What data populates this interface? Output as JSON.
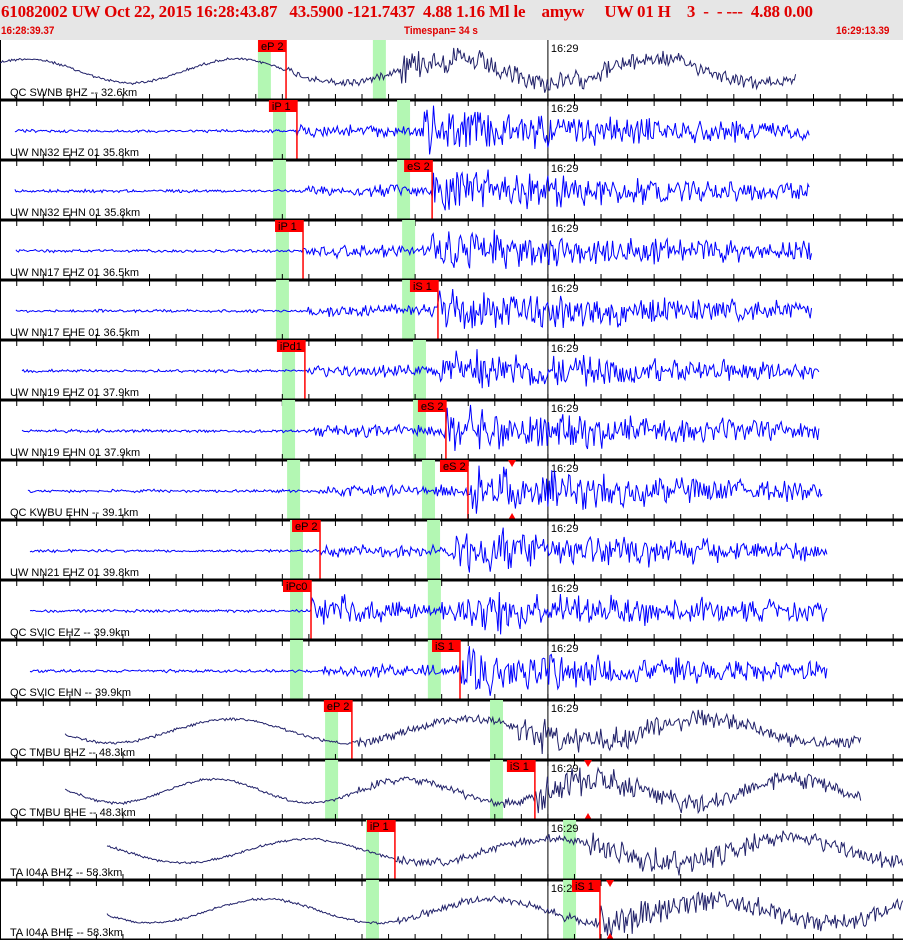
{
  "header": {
    "title": "61082002 UW Oct 22, 2015 16:28:43.87   43.5900 -121.7437  4.88 1.16 Ml le    amyw     UW 01 H    3  -  - ---  4.88 0.00",
    "start_time": "16:28:39.37",
    "timespan": "Timespan=  34 s",
    "end_time": "16:29:13.39"
  },
  "time_axis": {
    "span_seconds": 34,
    "minute_mark_label": "16:29",
    "minute_mark_offset_s": 20.63,
    "tick_interval_s": 1
  },
  "colors": {
    "pick": "#ff0000",
    "theoretical_window": "#b3f7b3",
    "broadband_trace": "#22226a",
    "short_period_trace": "#0000ff",
    "header_text": "#e00000"
  },
  "panels": [
    {
      "label": "QC SWNB BHZ -- 32.6km",
      "type": "BH",
      "pick": "eP 2",
      "pick_s": 10.77,
      "p_window_s": 9.71,
      "s_window_s": 14.04,
      "trace_s": [
        0,
        30.0
      ]
    },
    {
      "label": "UW NN32 EHZ 01 35.8km",
      "type": "EH",
      "pick": "iP 1",
      "pick_s": 11.18,
      "p_window_s": 10.28,
      "s_window_s": 14.95,
      "trace_s": [
        0.56,
        30.5
      ]
    },
    {
      "label": "UW NN32 EHN 01 35.8km",
      "type": "EH",
      "pick": "eS 2",
      "pick_s": 16.27,
      "p_window_s": 10.28,
      "s_window_s": 14.95,
      "trace_s": [
        0.56,
        30.5
      ]
    },
    {
      "label": "UW NN17 EHZ 01 36.5km",
      "type": "EH",
      "pick": "iP 1",
      "pick_s": 11.41,
      "p_window_s": 10.39,
      "s_window_s": 15.14,
      "trace_s": [
        0.6,
        30.6
      ]
    },
    {
      "label": "UW NN17 EHE 01 36.5km",
      "type": "EH",
      "pick": "iS 1",
      "pick_s": 16.49,
      "p_window_s": 10.39,
      "s_window_s": 15.14,
      "trace_s": [
        0.6,
        30.6
      ]
    },
    {
      "label": "UW NN19 EHZ 01 37.9km",
      "type": "EH",
      "pick": "iPd1",
      "pick_s": 11.48,
      "p_window_s": 10.62,
      "s_window_s": 15.55,
      "trace_s": [
        0.83,
        30.87
      ]
    },
    {
      "label": "UW NN19 EHN 01 37.9km",
      "type": "EH",
      "pick": "eS 2",
      "pick_s": 16.79,
      "p_window_s": 10.62,
      "s_window_s": 15.55,
      "trace_s": [
        0.83,
        30.87
      ]
    },
    {
      "label": "QC KWBU EHN -- 39.1km",
      "type": "EH",
      "pick": "eS 2",
      "pick_s": 17.62,
      "p_window_s": 10.81,
      "s_window_s": 15.89,
      "trace_s": [
        1.05,
        30.99
      ],
      "marker_s": 19.28
    },
    {
      "label": "UW NN21 EHZ 01 39.8km",
      "type": "EH",
      "pick": "eP 2",
      "pick_s": 12.05,
      "p_window_s": 10.92,
      "s_window_s": 16.08,
      "trace_s": [
        1.13,
        31.14
      ]
    },
    {
      "label": "QC SVIC EHZ -- 39.9km",
      "type": "EH",
      "pick": "iPc0",
      "pick_s": 11.71,
      "p_window_s": 10.92,
      "s_window_s": 16.11,
      "trace_s": [
        1.13,
        31.14
      ]
    },
    {
      "label": "QC SVIC EHN -- 39.9km",
      "type": "EH",
      "pick": "iS 1",
      "pick_s": 17.32,
      "p_window_s": 10.92,
      "s_window_s": 16.11,
      "trace_s": [
        1.13,
        31.14
      ]
    },
    {
      "label": "QC TMBU BHZ -- 48.3km",
      "type": "BH",
      "pick": "eP 2",
      "pick_s": 13.25,
      "p_window_s": 12.24,
      "s_window_s": 18.45,
      "trace_s": [
        2.45,
        32.45
      ]
    },
    {
      "label": "QC TMBU BHE -- 48.3km",
      "type": "BH",
      "pick": "iS 1",
      "pick_s": 20.14,
      "p_window_s": 12.24,
      "s_window_s": 18.45,
      "trace_s": [
        2.45,
        32.45
      ],
      "marker_s": 22.14
    },
    {
      "label": "TA I04A BHZ -- 58.3km",
      "type": "BH",
      "pick": "iP 1",
      "pick_s": 14.87,
      "p_window_s": 13.78,
      "s_window_s": 21.2,
      "trace_s": [
        4.03,
        34
      ]
    },
    {
      "label": "TA I04A BHE -- 58.3km",
      "type": "BH",
      "pick": "iS 1",
      "pick_s": 22.59,
      "p_window_s": 13.78,
      "s_window_s": 21.2,
      "trace_s": [
        4.03,
        34
      ],
      "marker_s": 22.97
    }
  ]
}
